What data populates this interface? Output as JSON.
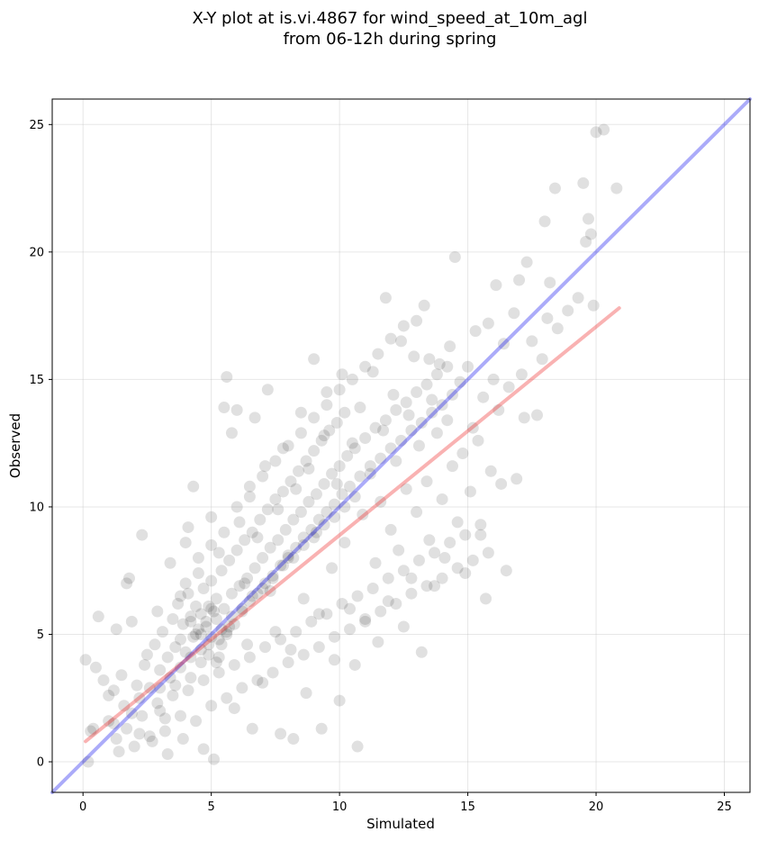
{
  "chart_data": {
    "type": "scatter",
    "title_line1": "X-Y plot at is.vi.4867 for wind_speed_at_10m_agl",
    "title_line2": "from 06-12h during spring",
    "xlabel": "Simulated",
    "ylabel": "Observed",
    "xlim": [
      -1.2,
      26
    ],
    "ylim": [
      -1.2,
      26
    ],
    "xticks": [
      0,
      5,
      10,
      15,
      20,
      25
    ],
    "yticks": [
      0,
      5,
      10,
      15,
      20,
      25
    ],
    "xtick_labels": [
      "0",
      "5",
      "10",
      "15",
      "20",
      "25"
    ],
    "ytick_labels": [
      "0",
      "5",
      "10",
      "15",
      "20",
      "25"
    ],
    "grid": true,
    "colors": {
      "points": "#000000",
      "identity_line": "#0000ee",
      "fit_line": "#ee2222"
    },
    "identity_line": {
      "x": [
        -1.2,
        26
      ],
      "y": [
        -1.2,
        26
      ]
    },
    "fit_line": {
      "x": [
        0.1,
        20.9
      ],
      "y": [
        0.8,
        17.8
      ]
    },
    "points": [
      [
        0.1,
        4.0
      ],
      [
        0.2,
        0.0
      ],
      [
        0.3,
        1.2
      ],
      [
        0.4,
        1.3
      ],
      [
        0.5,
        3.7
      ],
      [
        0.6,
        5.7
      ],
      [
        0.8,
        3.2
      ],
      [
        1.0,
        2.6
      ],
      [
        1.2,
        1.5
      ],
      [
        1.3,
        5.2
      ],
      [
        1.4,
        0.4
      ],
      [
        1.6,
        2.2
      ],
      [
        1.7,
        7.0
      ],
      [
        1.8,
        7.2
      ],
      [
        1.9,
        5.5
      ],
      [
        2.1,
        3.0
      ],
      [
        2.2,
        1.1
      ],
      [
        2.3,
        8.9
      ],
      [
        2.5,
        4.2
      ],
      [
        2.7,
        0.8
      ],
      [
        2.9,
        5.9
      ],
      [
        3.0,
        2.0
      ],
      [
        3.2,
        1.2
      ],
      [
        3.3,
        0.3
      ],
      [
        3.4,
        7.8
      ],
      [
        3.6,
        4.5
      ],
      [
        3.8,
        6.5
      ],
      [
        3.9,
        0.9
      ],
      [
        4.0,
        8.6
      ],
      [
        4.1,
        9.2
      ],
      [
        4.2,
        3.3
      ],
      [
        4.3,
        10.8
      ],
      [
        4.5,
        7.4
      ],
      [
        4.6,
        5.0
      ],
      [
        4.7,
        0.5
      ],
      [
        4.9,
        6.1
      ],
      [
        5.0,
        9.6
      ],
      [
        5.1,
        0.1
      ],
      [
        5.2,
        3.9
      ],
      [
        5.3,
        8.2
      ],
      [
        5.5,
        13.9
      ],
      [
        5.6,
        15.1
      ],
      [
        5.7,
        5.3
      ],
      [
        5.8,
        12.9
      ],
      [
        5.9,
        2.1
      ],
      [
        6.0,
        13.8
      ],
      [
        6.1,
        9.4
      ],
      [
        6.3,
        7.0
      ],
      [
        6.4,
        4.6
      ],
      [
        6.5,
        10.4
      ],
      [
        6.6,
        1.3
      ],
      [
        6.7,
        13.5
      ],
      [
        6.8,
        8.8
      ],
      [
        7.0,
        3.1
      ],
      [
        7.1,
        11.6
      ],
      [
        7.2,
        14.6
      ],
      [
        7.3,
        6.7
      ],
      [
        7.5,
        5.1
      ],
      [
        7.6,
        9.9
      ],
      [
        7.7,
        1.1
      ],
      [
        7.8,
        12.3
      ],
      [
        8.0,
        8.1
      ],
      [
        8.1,
        4.4
      ],
      [
        8.2,
        0.9
      ],
      [
        8.3,
        10.7
      ],
      [
        8.5,
        13.7
      ],
      [
        8.6,
        6.4
      ],
      [
        8.7,
        2.7
      ],
      [
        8.8,
        11.5
      ],
      [
        9.0,
        15.8
      ],
      [
        9.1,
        9.0
      ],
      [
        9.2,
        5.8
      ],
      [
        9.3,
        1.3
      ],
      [
        9.4,
        12.8
      ],
      [
        9.5,
        14.5
      ],
      [
        9.7,
        7.6
      ],
      [
        9.8,
        4.0
      ],
      [
        9.9,
        10.9
      ],
      [
        10.0,
        2.4
      ],
      [
        10.1,
        15.2
      ],
      [
        10.2,
        8.6
      ],
      [
        10.4,
        6.0
      ],
      [
        10.5,
        12.5
      ],
      [
        10.6,
        3.8
      ],
      [
        10.7,
        0.6
      ],
      [
        10.8,
        13.9
      ],
      [
        10.9,
        9.7
      ],
      [
        11.0,
        5.5
      ],
      [
        11.2,
        11.3
      ],
      [
        11.3,
        15.3
      ],
      [
        11.4,
        7.8
      ],
      [
        11.5,
        4.7
      ],
      [
        11.6,
        10.2
      ],
      [
        11.7,
        13.0
      ],
      [
        11.8,
        18.2
      ],
      [
        11.9,
        6.3
      ],
      [
        12.0,
        9.1
      ],
      [
        12.1,
        14.4
      ],
      [
        12.2,
        11.8
      ],
      [
        12.3,
        8.3
      ],
      [
        12.4,
        16.5
      ],
      [
        12.5,
        5.3
      ],
      [
        12.6,
        10.7
      ],
      [
        12.7,
        13.6
      ],
      [
        12.8,
        7.2
      ],
      [
        12.9,
        15.9
      ],
      [
        13.0,
        9.8
      ],
      [
        13.1,
        12.4
      ],
      [
        13.2,
        4.3
      ],
      [
        13.3,
        17.9
      ],
      [
        13.4,
        11.0
      ],
      [
        13.5,
        8.7
      ],
      [
        13.6,
        14.2
      ],
      [
        13.7,
        6.9
      ],
      [
        13.8,
        12.9
      ],
      [
        13.9,
        15.6
      ],
      [
        14.0,
        10.3
      ],
      [
        14.1,
        8.0
      ],
      [
        14.2,
        13.4
      ],
      [
        14.3,
        16.3
      ],
      [
        14.4,
        11.6
      ],
      [
        14.5,
        19.8
      ],
      [
        14.6,
        9.4
      ],
      [
        14.7,
        14.9
      ],
      [
        14.8,
        12.1
      ],
      [
        14.9,
        7.4
      ],
      [
        15.0,
        15.5
      ],
      [
        15.1,
        10.6
      ],
      [
        15.2,
        13.1
      ],
      [
        15.3,
        16.9
      ],
      [
        15.4,
        12.6
      ],
      [
        15.5,
        8.9
      ],
      [
        15.6,
        14.3
      ],
      [
        15.7,
        6.4
      ],
      [
        15.8,
        17.2
      ],
      [
        15.9,
        11.4
      ],
      [
        16.0,
        15.0
      ],
      [
        16.1,
        18.7
      ],
      [
        16.2,
        13.8
      ],
      [
        16.3,
        10.9
      ],
      [
        16.4,
        16.4
      ],
      [
        16.5,
        7.5
      ],
      [
        16.6,
        14.7
      ],
      [
        16.8,
        17.6
      ],
      [
        16.9,
        11.1
      ],
      [
        17.0,
        18.9
      ],
      [
        17.1,
        15.2
      ],
      [
        17.2,
        13.5
      ],
      [
        17.3,
        19.6
      ],
      [
        17.5,
        16.5
      ],
      [
        17.7,
        13.6
      ],
      [
        17.9,
        15.8
      ],
      [
        18.0,
        21.2
      ],
      [
        18.1,
        17.4
      ],
      [
        18.2,
        18.8
      ],
      [
        18.4,
        22.5
      ],
      [
        18.5,
        17.0
      ],
      [
        18.9,
        17.7
      ],
      [
        19.3,
        18.2
      ],
      [
        19.5,
        22.7
      ],
      [
        19.6,
        20.4
      ],
      [
        19.7,
        21.3
      ],
      [
        19.8,
        20.7
      ],
      [
        19.9,
        17.9
      ],
      [
        20.0,
        24.7
      ],
      [
        20.3,
        24.8
      ],
      [
        20.8,
        22.5
      ],
      [
        1.2,
        2.8
      ],
      [
        1.5,
        3.4
      ],
      [
        1.9,
        1.9
      ],
      [
        2.2,
        2.5
      ],
      [
        2.4,
        3.8
      ],
      [
        2.6,
        2.9
      ],
      [
        2.8,
        4.6
      ],
      [
        3.0,
        3.6
      ],
      [
        3.1,
        5.1
      ],
      [
        3.3,
        4.1
      ],
      [
        3.5,
        5.6
      ],
      [
        3.6,
        3.0
      ],
      [
        3.7,
        6.2
      ],
      [
        3.8,
        4.8
      ],
      [
        3.9,
        5.4
      ],
      [
        4.0,
        4.3
      ],
      [
        4.1,
        6.6
      ],
      [
        4.2,
        5.7
      ],
      [
        4.3,
        4.9
      ],
      [
        4.4,
        6.1
      ],
      [
        4.5,
        5.2
      ],
      [
        4.6,
        3.9
      ],
      [
        4.7,
        6.8
      ],
      [
        4.8,
        5.5
      ],
      [
        4.9,
        4.6
      ],
      [
        5.0,
        7.1
      ],
      [
        5.1,
        5.9
      ],
      [
        5.2,
        6.4
      ],
      [
        5.3,
        4.8
      ],
      [
        5.4,
        7.5
      ],
      [
        5.5,
        6.0
      ],
      [
        5.6,
        5.1
      ],
      [
        5.7,
        7.9
      ],
      [
        5.8,
        6.6
      ],
      [
        5.9,
        5.4
      ],
      [
        6.0,
        8.3
      ],
      [
        6.1,
        6.9
      ],
      [
        6.2,
        5.9
      ],
      [
        6.3,
        8.7
      ],
      [
        6.4,
        7.2
      ],
      [
        6.5,
        6.3
      ],
      [
        6.6,
        9.0
      ],
      [
        6.7,
        7.6
      ],
      [
        6.8,
        6.6
      ],
      [
        6.9,
        9.5
      ],
      [
        7.0,
        8.0
      ],
      [
        7.1,
        7.0
      ],
      [
        7.2,
        9.9
      ],
      [
        7.3,
        8.4
      ],
      [
        7.4,
        7.3
      ],
      [
        7.5,
        10.3
      ],
      [
        7.6,
        8.7
      ],
      [
        7.7,
        7.7
      ],
      [
        7.8,
        10.6
      ],
      [
        7.9,
        9.1
      ],
      [
        8.0,
        8.0
      ],
      [
        8.1,
        11.0
      ],
      [
        8.2,
        9.5
      ],
      [
        8.3,
        8.4
      ],
      [
        8.4,
        11.4
      ],
      [
        8.5,
        9.8
      ],
      [
        8.6,
        8.8
      ],
      [
        8.7,
        11.8
      ],
      [
        8.8,
        10.2
      ],
      [
        8.9,
        9.1
      ],
      [
        9.0,
        12.2
      ],
      [
        9.1,
        10.5
      ],
      [
        9.2,
        9.5
      ],
      [
        9.3,
        12.6
      ],
      [
        9.4,
        10.9
      ],
      [
        9.5,
        9.8
      ],
      [
        9.6,
        13.0
      ],
      [
        9.7,
        11.3
      ],
      [
        9.8,
        10.1
      ],
      [
        9.9,
        13.3
      ],
      [
        10.0,
        11.6
      ],
      [
        10.1,
        10.5
      ],
      [
        10.2,
        13.7
      ],
      [
        10.3,
        12.0
      ],
      [
        10.4,
        10.8
      ],
      [
        10.6,
        12.3
      ],
      [
        10.8,
        11.2
      ],
      [
        11.0,
        12.7
      ],
      [
        11.2,
        11.6
      ],
      [
        11.4,
        13.1
      ],
      [
        11.6,
        11.9
      ],
      [
        11.8,
        13.4
      ],
      [
        12.0,
        12.3
      ],
      [
        12.2,
        13.8
      ],
      [
        12.4,
        12.6
      ],
      [
        12.6,
        14.1
      ],
      [
        12.8,
        13.0
      ],
      [
        13.0,
        14.5
      ],
      [
        13.2,
        13.3
      ],
      [
        13.4,
        14.8
      ],
      [
        13.6,
        13.7
      ],
      [
        13.8,
        15.2
      ],
      [
        14.0,
        14.0
      ],
      [
        14.2,
        15.5
      ],
      [
        14.4,
        14.4
      ],
      [
        1.0,
        1.6
      ],
      [
        1.3,
        0.9
      ],
      [
        1.7,
        1.3
      ],
      [
        2.0,
        0.6
      ],
      [
        2.3,
        1.8
      ],
      [
        2.6,
        1.0
      ],
      [
        2.9,
        2.3
      ],
      [
        3.2,
        1.7
      ],
      [
        3.5,
        2.6
      ],
      [
        3.8,
        1.8
      ],
      [
        4.1,
        2.8
      ],
      [
        4.4,
        1.6
      ],
      [
        4.7,
        3.2
      ],
      [
        5.0,
        2.2
      ],
      [
        5.3,
        3.5
      ],
      [
        5.6,
        2.5
      ],
      [
        5.9,
        3.8
      ],
      [
        6.2,
        2.9
      ],
      [
        6.5,
        4.1
      ],
      [
        6.8,
        3.2
      ],
      [
        7.1,
        4.5
      ],
      [
        7.4,
        3.5
      ],
      [
        7.7,
        4.8
      ],
      [
        8.0,
        3.9
      ],
      [
        8.3,
        5.1
      ],
      [
        8.6,
        4.2
      ],
      [
        8.9,
        5.5
      ],
      [
        9.2,
        4.5
      ],
      [
        9.5,
        5.8
      ],
      [
        9.8,
        4.9
      ],
      [
        10.1,
        6.2
      ],
      [
        10.4,
        5.2
      ],
      [
        10.7,
        6.5
      ],
      [
        11.0,
        5.6
      ],
      [
        11.3,
        6.8
      ],
      [
        11.6,
        5.9
      ],
      [
        11.9,
        7.2
      ],
      [
        12.2,
        6.2
      ],
      [
        12.5,
        7.5
      ],
      [
        12.8,
        6.6
      ],
      [
        13.1,
        7.9
      ],
      [
        13.4,
        6.9
      ],
      [
        13.7,
        8.2
      ],
      [
        14.0,
        7.2
      ],
      [
        14.3,
        8.6
      ],
      [
        14.6,
        7.6
      ],
      [
        14.9,
        8.9
      ],
      [
        15.2,
        7.9
      ],
      [
        15.5,
        9.3
      ],
      [
        15.8,
        8.2
      ],
      [
        4.0,
        7.0
      ],
      [
        4.5,
        8.0
      ],
      [
        5.0,
        8.5
      ],
      [
        5.5,
        9.0
      ],
      [
        6.0,
        10.0
      ],
      [
        6.5,
        10.8
      ],
      [
        7.0,
        11.2
      ],
      [
        7.5,
        11.8
      ],
      [
        8.0,
        12.4
      ],
      [
        8.5,
        12.9
      ],
      [
        9.0,
        13.5
      ],
      [
        9.5,
        14.0
      ],
      [
        10.0,
        14.6
      ],
      [
        10.5,
        15.0
      ],
      [
        11.0,
        15.5
      ],
      [
        11.5,
        16.0
      ],
      [
        12.0,
        16.6
      ],
      [
        12.5,
        17.1
      ],
      [
        13.0,
        17.3
      ],
      [
        13.5,
        15.8
      ],
      [
        3.0,
        2.9
      ],
      [
        3.4,
        3.3
      ],
      [
        3.8,
        3.7
      ],
      [
        4.2,
        4.1
      ],
      [
        4.6,
        4.4
      ],
      [
        5.0,
        4.9
      ],
      [
        5.4,
        5.2
      ],
      [
        5.8,
        5.7
      ],
      [
        6.2,
        6.0
      ],
      [
        6.6,
        6.5
      ],
      [
        7.0,
        6.8
      ],
      [
        7.4,
        7.2
      ],
      [
        7.8,
        7.7
      ],
      [
        8.2,
        8.0
      ],
      [
        8.6,
        8.5
      ],
      [
        9.0,
        8.8
      ],
      [
        9.4,
        9.3
      ],
      [
        9.8,
        9.6
      ],
      [
        10.2,
        10.0
      ],
      [
        10.6,
        10.4
      ],
      [
        4.4,
        5.0
      ],
      [
        4.8,
        5.3
      ],
      [
        5.2,
        5.6
      ],
      [
        4.6,
        5.8
      ],
      [
        5.0,
        6.0
      ],
      [
        5.4,
        4.6
      ],
      [
        4.2,
        5.5
      ],
      [
        5.6,
        5.0
      ],
      [
        4.9,
        4.2
      ],
      [
        5.3,
        4.1
      ]
    ]
  }
}
